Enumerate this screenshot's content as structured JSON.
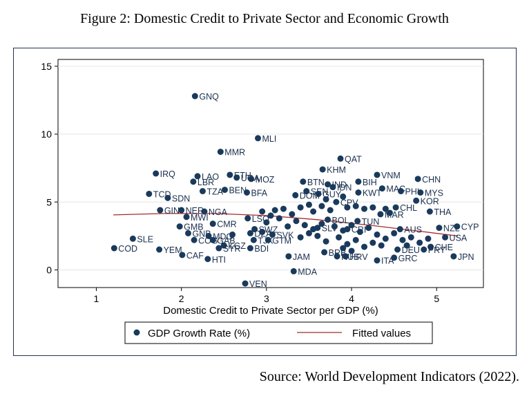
{
  "figure_title": "Figure 2: Domestic Credit to Private Sector and Economic Growth",
  "source": "Source: World Development Indicators (2022).",
  "colors": {
    "point": "#1a3a5c",
    "fit": "#a52a2a",
    "frame": "#1f3350"
  },
  "chart_data": {
    "type": "scatter",
    "title": "",
    "xlabel": "Domestic Credit to Private Sector per GDP (%)",
    "ylabel": "",
    "xlim": [
      0.55,
      5.55
    ],
    "ylim": [
      -1.3,
      15.5
    ],
    "xticks": [
      1,
      2,
      3,
      4,
      5
    ],
    "yticks": [
      0,
      5,
      10,
      15
    ],
    "grid": true,
    "legend": {
      "placement": "bottom",
      "entries": [
        "GDP Growth Rate (%)",
        "Fitted values"
      ]
    },
    "series": [
      {
        "name": "GDP Growth Rate (%)",
        "points": [
          {
            "label": "GNQ",
            "x": 2.16,
            "y": 12.8
          },
          {
            "label": "MLI",
            "x": 2.9,
            "y": 9.7
          },
          {
            "label": "MMR",
            "x": 2.46,
            "y": 8.7
          },
          {
            "label": "QAT",
            "x": 3.87,
            "y": 8.2
          },
          {
            "label": "KHM",
            "x": 3.66,
            "y": 7.4
          },
          {
            "label": "IRQ",
            "x": 1.7,
            "y": 7.1
          },
          {
            "label": "LAO",
            "x": 2.19,
            "y": 6.9
          },
          {
            "label": "ETH",
            "x": 2.57,
            "y": 7.0
          },
          {
            "label": "MOZ",
            "x": 2.82,
            "y": 6.7
          },
          {
            "label": "UGA",
            "x": 2.65,
            "y": 6.8
          },
          {
            "label": "LBR",
            "x": 2.14,
            "y": 6.5
          },
          {
            "label": "VNM",
            "x": 4.3,
            "y": 7.0
          },
          {
            "label": "CHN",
            "x": 4.78,
            "y": 6.7
          },
          {
            "label": "BTN",
            "x": 3.43,
            "y": 6.5
          },
          {
            "label": "BIH",
            "x": 4.08,
            "y": 6.5
          },
          {
            "label": "IND",
            "x": 3.72,
            "y": 6.3
          },
          {
            "label": "IDN",
            "x": 3.78,
            "y": 6.1
          },
          {
            "label": "TZA",
            "x": 2.25,
            "y": 5.8
          },
          {
            "label": "BEN",
            "x": 2.51,
            "y": 5.9
          },
          {
            "label": "BFA",
            "x": 2.77,
            "y": 5.7
          },
          {
            "label": "MAC",
            "x": 4.36,
            "y": 6.0
          },
          {
            "label": "PHL",
            "x": 4.58,
            "y": 5.8
          },
          {
            "label": "MYS",
            "x": 4.81,
            "y": 5.7
          },
          {
            "label": "TCD",
            "x": 1.62,
            "y": 5.6
          },
          {
            "label": "SDN",
            "x": 1.84,
            "y": 5.3
          },
          {
            "label": "SEN",
            "x": 3.47,
            "y": 5.8
          },
          {
            "label": "GUY",
            "x": 3.61,
            "y": 5.6
          },
          {
            "label": "DOM",
            "x": 3.34,
            "y": 5.5
          },
          {
            "label": "KWT",
            "x": 4.08,
            "y": 5.7
          },
          {
            "label": "CPV",
            "x": 3.82,
            "y": 5.0
          },
          {
            "label": "KOR",
            "x": 4.76,
            "y": 5.1
          },
          {
            "label": "GIN",
            "x": 1.75,
            "y": 4.4
          },
          {
            "label": "NER",
            "x": 2.0,
            "y": 4.4
          },
          {
            "label": "NGA",
            "x": 2.27,
            "y": 4.3
          },
          {
            "label": "CHL",
            "x": 4.52,
            "y": 4.6
          },
          {
            "label": "THA",
            "x": 4.92,
            "y": 4.3
          },
          {
            "label": "MAR",
            "x": 4.34,
            "y": 4.1
          },
          {
            "label": "MWI",
            "x": 2.06,
            "y": 3.9
          },
          {
            "label": "LSO",
            "x": 2.78,
            "y": 3.8
          },
          {
            "label": "BOL",
            "x": 3.72,
            "y": 3.7
          },
          {
            "label": "TUN",
            "x": 4.07,
            "y": 3.6
          },
          {
            "label": "CMR",
            "x": 2.37,
            "y": 3.4
          },
          {
            "label": "GMB",
            "x": 1.98,
            "y": 3.2
          },
          {
            "label": "NZL",
            "x": 5.03,
            "y": 3.1
          },
          {
            "label": "CYP",
            "x": 5.24,
            "y": 3.2
          },
          {
            "label": "AUS",
            "x": 4.57,
            "y": 3.0
          },
          {
            "label": "SWZ",
            "x": 2.86,
            "y": 3.0
          },
          {
            "label": "SLV",
            "x": 3.6,
            "y": 3.1
          },
          {
            "label": "CRI",
            "x": 3.95,
            "y": 3.0
          },
          {
            "label": "GNB",
            "x": 2.08,
            "y": 2.7
          },
          {
            "label": "MDG",
            "x": 2.32,
            "y": 2.5
          },
          {
            "label": "DZA",
            "x": 2.81,
            "y": 2.7
          },
          {
            "label": "SVK",
            "x": 3.07,
            "y": 2.6
          },
          {
            "label": "USA",
            "x": 5.1,
            "y": 2.4
          },
          {
            "label": "SLE",
            "x": 1.43,
            "y": 2.3
          },
          {
            "label": "COG",
            "x": 2.15,
            "y": 2.2
          },
          {
            "label": "GAB",
            "x": 2.37,
            "y": 2.2
          },
          {
            "label": "TJK",
            "x": 2.85,
            "y": 2.2
          },
          {
            "label": "GTM",
            "x": 3.02,
            "y": 2.2
          },
          {
            "label": "KGZ",
            "x": 2.5,
            "y": 1.8
          },
          {
            "label": "SYR",
            "x": 2.44,
            "y": 1.6
          },
          {
            "label": "BDI",
            "x": 2.81,
            "y": 1.6
          },
          {
            "label": "CHE",
            "x": 4.93,
            "y": 1.7
          },
          {
            "label": "PRY",
            "x": 4.85,
            "y": 1.5
          },
          {
            "label": "COD",
            "x": 1.21,
            "y": 1.6
          },
          {
            "label": "YEM",
            "x": 1.74,
            "y": 1.5
          },
          {
            "label": "CAF",
            "x": 2.01,
            "y": 1.1
          },
          {
            "label": "HTI",
            "x": 2.31,
            "y": 0.8
          },
          {
            "label": "JAM",
            "x": 3.26,
            "y": 1.0
          },
          {
            "label": "BRB",
            "x": 3.68,
            "y": 1.3
          },
          {
            "label": "RUS",
            "x": 3.83,
            "y": 1.0
          },
          {
            "label": "HRV",
            "x": 3.93,
            "y": 1.0
          },
          {
            "label": "DEU",
            "x": 4.54,
            "y": 1.5
          },
          {
            "label": "GRC",
            "x": 4.5,
            "y": 0.9
          },
          {
            "label": "ITA",
            "x": 4.3,
            "y": 0.7
          },
          {
            "label": "JPN",
            "x": 5.2,
            "y": 1.0
          },
          {
            "label": "MDA",
            "x": 3.32,
            "y": -0.1
          },
          {
            "label": "VEN",
            "x": 2.75,
            "y": -1.0
          },
          {
            "label": "",
            "x": 3.1,
            "y": 4.4
          },
          {
            "label": "",
            "x": 3.2,
            "y": 4.5
          },
          {
            "label": "",
            "x": 3.3,
            "y": 4.1
          },
          {
            "label": "",
            "x": 3.4,
            "y": 4.6
          },
          {
            "label": "",
            "x": 3.5,
            "y": 4.8
          },
          {
            "label": "",
            "x": 3.55,
            "y": 4.3
          },
          {
            "label": "",
            "x": 3.65,
            "y": 4.7
          },
          {
            "label": "",
            "x": 3.75,
            "y": 4.4
          },
          {
            "label": "",
            "x": 3.95,
            "y": 4.6
          },
          {
            "label": "",
            "x": 4.05,
            "y": 4.7
          },
          {
            "label": "",
            "x": 4.15,
            "y": 4.5
          },
          {
            "label": "",
            "x": 4.25,
            "y": 4.6
          },
          {
            "label": "",
            "x": 4.4,
            "y": 4.5
          },
          {
            "label": "",
            "x": 4.45,
            "y": 4.2
          },
          {
            "label": "",
            "x": 3.0,
            "y": 3.5
          },
          {
            "label": "",
            "x": 3.15,
            "y": 3.8
          },
          {
            "label": "",
            "x": 3.25,
            "y": 3.2
          },
          {
            "label": "",
            "x": 3.35,
            "y": 3.6
          },
          {
            "label": "",
            "x": 3.45,
            "y": 3.3
          },
          {
            "label": "",
            "x": 3.55,
            "y": 3.0
          },
          {
            "label": "",
            "x": 3.65,
            "y": 3.4
          },
          {
            "label": "",
            "x": 3.8,
            "y": 3.2
          },
          {
            "label": "",
            "x": 3.9,
            "y": 2.9
          },
          {
            "label": "",
            "x": 4.0,
            "y": 3.3
          },
          {
            "label": "",
            "x": 4.1,
            "y": 2.8
          },
          {
            "label": "",
            "x": 4.2,
            "y": 3.1
          },
          {
            "label": "",
            "x": 4.3,
            "y": 2.6
          },
          {
            "label": "",
            "x": 4.4,
            "y": 2.3
          },
          {
            "label": "",
            "x": 4.5,
            "y": 2.7
          },
          {
            "label": "",
            "x": 4.6,
            "y": 2.2
          },
          {
            "label": "",
            "x": 4.7,
            "y": 2.4
          },
          {
            "label": "",
            "x": 4.8,
            "y": 2.0
          },
          {
            "label": "",
            "x": 4.9,
            "y": 2.3
          },
          {
            "label": "",
            "x": 4.65,
            "y": 1.8
          },
          {
            "label": "",
            "x": 3.6,
            "y": 2.5
          },
          {
            "label": "",
            "x": 3.7,
            "y": 2.1
          },
          {
            "label": "",
            "x": 3.85,
            "y": 2.4
          },
          {
            "label": "",
            "x": 3.95,
            "y": 1.9
          },
          {
            "label": "",
            "x": 4.05,
            "y": 2.2
          },
          {
            "label": "",
            "x": 4.15,
            "y": 1.7
          },
          {
            "label": "",
            "x": 4.25,
            "y": 2.0
          },
          {
            "label": "",
            "x": 4.35,
            "y": 1.8
          },
          {
            "label": "",
            "x": 4.0,
            "y": 1.4
          },
          {
            "label": "",
            "x": 3.9,
            "y": 1.6
          },
          {
            "label": "",
            "x": 3.4,
            "y": 2.4
          },
          {
            "label": "",
            "x": 3.5,
            "y": 2.7
          },
          {
            "label": "",
            "x": 2.95,
            "y": 2.8
          },
          {
            "label": "",
            "x": 2.6,
            "y": 2.6
          },
          {
            "label": "",
            "x": 2.95,
            "y": 4.3
          },
          {
            "label": "",
            "x": 3.05,
            "y": 4.0
          },
          {
            "label": "",
            "x": 3.7,
            "y": 5.2
          },
          {
            "label": "",
            "x": 3.9,
            "y": 5.4
          }
        ]
      },
      {
        "name": "Fitted values",
        "type": "line",
        "x": [
          1.2,
          1.8,
          2.4,
          3.0,
          3.6,
          4.2,
          4.8,
          5.25
        ],
        "y": [
          4.05,
          4.15,
          4.15,
          4.0,
          3.7,
          3.3,
          2.85,
          2.5
        ]
      }
    ]
  }
}
